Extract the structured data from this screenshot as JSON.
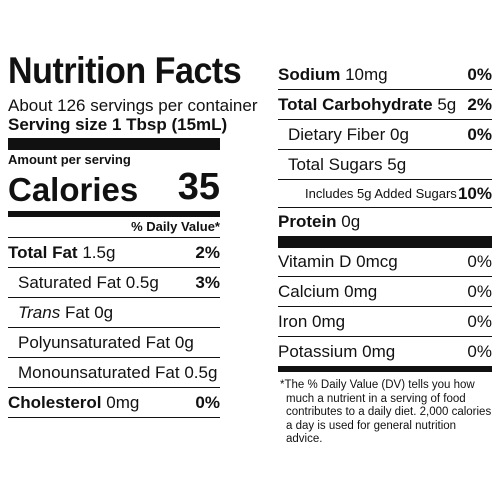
{
  "left": {
    "title": "Nutrition Facts",
    "servings_per_container": "About 126 servings per container",
    "serving_size_label": "Serving size",
    "serving_size_value": "1 Tbsp (15mL)",
    "amount_per_serving": "Amount per serving",
    "calories_label": "Calories",
    "calories_value": "35",
    "daily_value_header": "% Daily Value*",
    "rows": [
      {
        "label": "Total Fat",
        "amount": "1.5g",
        "dv": "2%"
      },
      {
        "label": "Saturated Fat",
        "amount": "0.5g",
        "dv": "3%"
      },
      {
        "label": "Trans",
        "amount": "Fat 0g",
        "dv": ""
      },
      {
        "label": "Polyunsaturated Fat",
        "amount": "0g",
        "dv": ""
      },
      {
        "label": "Monounsaturated Fat",
        "amount": "0.5g",
        "dv": ""
      },
      {
        "label": "Cholesterol",
        "amount": "0mg",
        "dv": "0%"
      }
    ]
  },
  "right": {
    "rows": [
      {
        "label": "Sodium",
        "amount": "10mg",
        "dv": "0%"
      },
      {
        "label": "Total Carbohydrate",
        "amount": "5g",
        "dv": "2%"
      },
      {
        "label": "Dietary Fiber",
        "amount": "0g",
        "dv": "0%"
      },
      {
        "label": "Total Sugars",
        "amount": "5g",
        "dv": ""
      },
      {
        "label": "Includes 5g Added Sugars",
        "amount": "",
        "dv": "10%"
      },
      {
        "label": "Protein",
        "amount": "0g",
        "dv": ""
      }
    ],
    "vitamins": [
      {
        "label": "Vitamin D",
        "amount": "0mcg",
        "dv": "0%"
      },
      {
        "label": "Calcium",
        "amount": "0mg",
        "dv": "0%"
      },
      {
        "label": "Iron",
        "amount": "0mg",
        "dv": "0%"
      },
      {
        "label": "Potassium",
        "amount": "0mg",
        "dv": "0%"
      }
    ],
    "footnote": "*The % Daily Value (DV) tells you how much a nutrient in a serving of food contributes to a daily diet. 2,000 calories a day is used for general nutrition advice."
  }
}
